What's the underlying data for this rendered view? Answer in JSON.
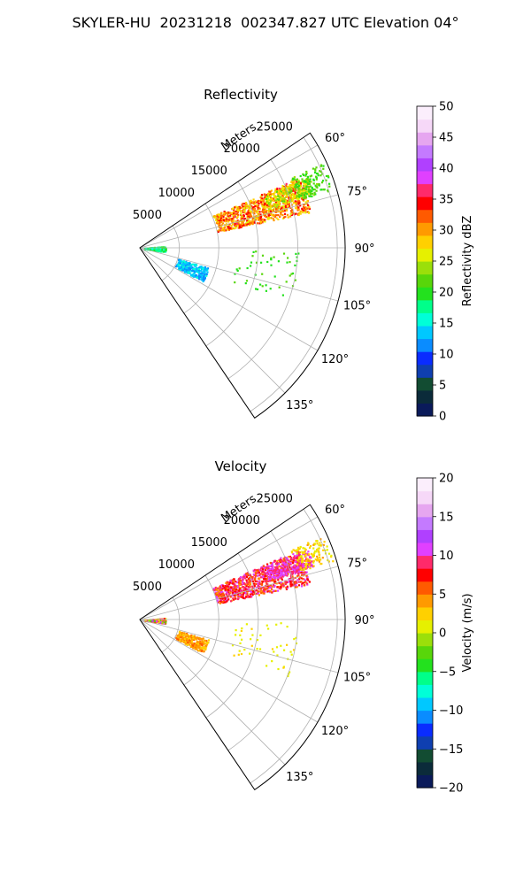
{
  "suptitle": "SKYLER-HU  20231218  002347.827 UTC Elevation 04°",
  "chart_data": [
    {
      "type": "polar-sector",
      "title": "Reflectivity",
      "radial_label": "Meters",
      "radial_ticks": [
        5000,
        10000,
        15000,
        20000,
        25000
      ],
      "rmax": 26000,
      "angle_ticks_deg": [
        60,
        75,
        90,
        105,
        120,
        135
      ],
      "angle_range_deg": [
        56,
        146
      ],
      "colorbar": {
        "label": "Reflectivity dBZ",
        "min": 0,
        "max": 50,
        "ticks": [
          0,
          5,
          10,
          15,
          20,
          25,
          30,
          35,
          40,
          45,
          50
        ],
        "stops": [
          "#0a1a5a",
          "#0b2b3a",
          "#124c32",
          "#0f3fb0",
          "#0a2cff",
          "#0a8cff",
          "#00c8ff",
          "#00ffd8",
          "#00ff8a",
          "#23e11e",
          "#58d60a",
          "#9bdf0a",
          "#e6f000",
          "#ffd000",
          "#ff9a00",
          "#ff5a00",
          "#ff0000",
          "#ff2a6a",
          "#e040ff",
          "#b040ff",
          "#c47aff",
          "#e6a6f0",
          "#f6d8f8",
          "#fbeefc"
        ]
      }
    },
    {
      "type": "polar-sector",
      "title": "Velocity",
      "radial_label": "Meters",
      "radial_ticks": [
        5000,
        10000,
        15000,
        20000,
        25000
      ],
      "rmax": 26000,
      "angle_ticks_deg": [
        60,
        75,
        90,
        105,
        120,
        135
      ],
      "angle_range_deg": [
        56,
        146
      ],
      "colorbar": {
        "label": "Velocity (m/s)",
        "min": -20,
        "max": 20,
        "ticks": [
          -20,
          -15,
          -10,
          -5,
          0,
          5,
          10,
          15,
          20
        ],
        "stops": [
          "#0a1a5a",
          "#0b2b3a",
          "#124c32",
          "#0f3fb0",
          "#0a2cff",
          "#0a8cff",
          "#00c8ff",
          "#00ffd8",
          "#00ff8a",
          "#23e11e",
          "#58d60a",
          "#9bdf0a",
          "#e6f000",
          "#ffd000",
          "#ff9a00",
          "#ff5a00",
          "#ff0000",
          "#ff2a6a",
          "#e040ff",
          "#b040ff",
          "#c47aff",
          "#e6a6f0",
          "#f6d8f8",
          "#fbeefc"
        ]
      }
    }
  ]
}
